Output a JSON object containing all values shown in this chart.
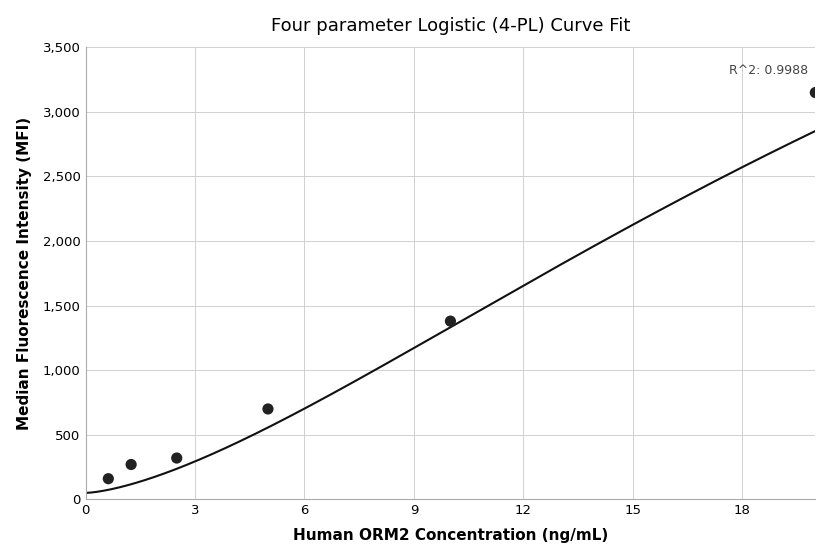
{
  "title": "Four parameter Logistic (4-PL) Curve Fit",
  "xlabel": "Human ORM2 Concentration (ng/mL)",
  "ylabel": "Median Fluorescence Intensity (MFI)",
  "data_points_x": [
    0.625,
    1.25,
    2.5,
    5.0,
    10.0,
    20.0
  ],
  "data_points_y": [
    160,
    270,
    320,
    700,
    1380,
    3150
  ],
  "r_squared": "R^2: 0.9988",
  "xlim": [
    0,
    20
  ],
  "ylim": [
    0,
    3500
  ],
  "xticks": [
    0,
    3,
    6,
    9,
    12,
    15,
    18
  ],
  "yticks": [
    0,
    500,
    1000,
    1500,
    2000,
    2500,
    3000,
    3500
  ],
  "background_color": "#ffffff",
  "grid_color": "#cccccc",
  "scatter_color": "#222222",
  "line_color": "#111111",
  "title_fontsize": 13,
  "label_fontsize": 11,
  "tick_fontsize": 9.5
}
